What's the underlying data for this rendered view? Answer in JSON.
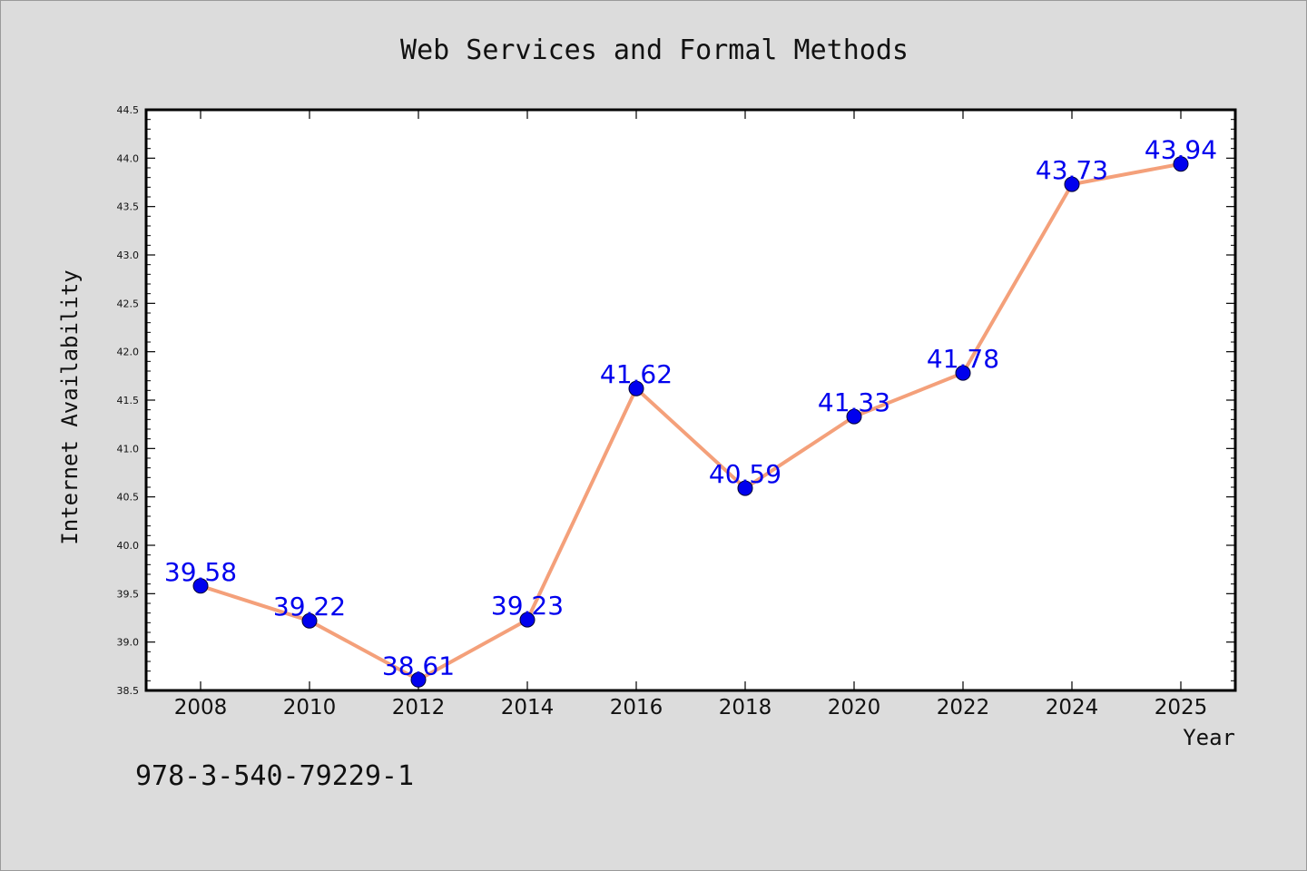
{
  "chart_data": {
    "type": "line",
    "title": "Web Services and Formal Methods",
    "xlabel": "Year",
    "ylabel": "Internet Availability",
    "categories": [
      "2008",
      "2010",
      "2012",
      "2014",
      "2016",
      "2018",
      "2020",
      "2022",
      "2024",
      "2025"
    ],
    "series": [
      {
        "values": [
          39.58,
          39.22,
          38.61,
          39.23,
          41.62,
          40.59,
          41.33,
          41.78,
          43.73,
          43.94
        ],
        "line_color": "#f4a07a",
        "marker_color": "#0000ee",
        "label_color": "#0000ee"
      }
    ],
    "ylim": [
      38.5,
      44.5
    ],
    "y_ticks": [
      "38.5",
      "39.0",
      "39.5",
      "40.0",
      "40.5",
      "41.0",
      "41.5",
      "42.0",
      "42.5",
      "43.0",
      "43.5",
      "44.0",
      "44.5"
    ],
    "grid": false,
    "legend": "none"
  },
  "footer": {
    "code": "978-3-540-79229-1"
  }
}
